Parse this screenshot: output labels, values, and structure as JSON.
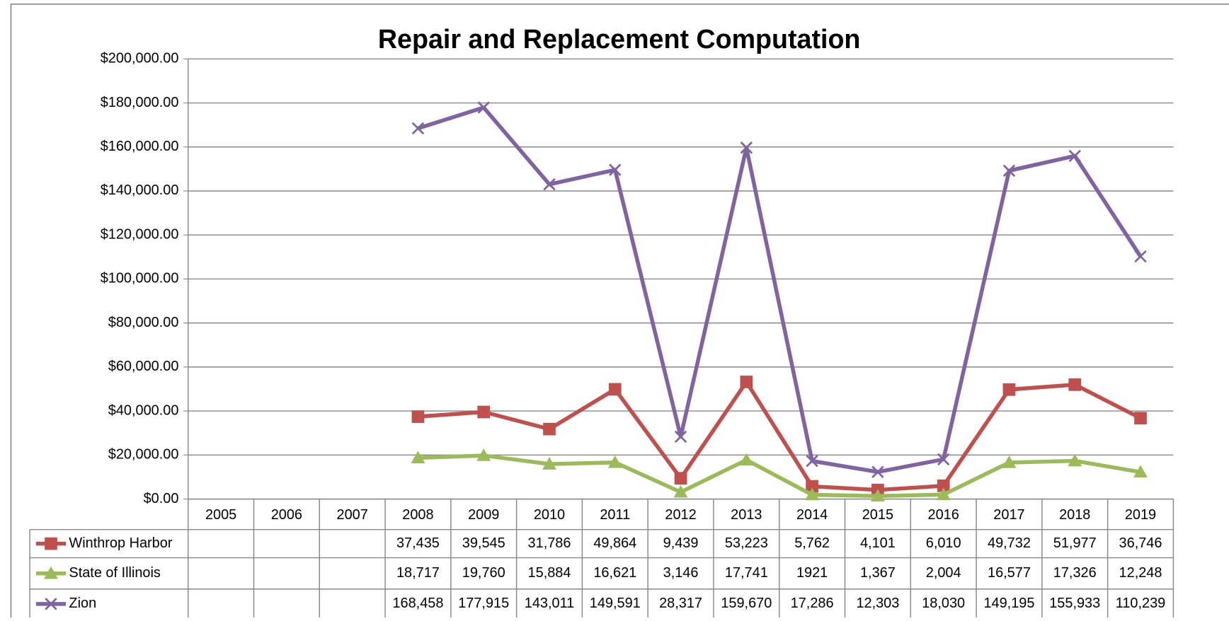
{
  "chart_data": {
    "type": "line",
    "title": "Repair and Replacement Computation",
    "categories": [
      "2005",
      "2006",
      "2007",
      "2008",
      "2009",
      "2010",
      "2011",
      "2012",
      "2013",
      "2014",
      "2015",
      "2016",
      "2017",
      "2018",
      "2019"
    ],
    "series": [
      {
        "name": "Winthrop Harbor",
        "color": "#c0504d",
        "marker": "square",
        "values": [
          null,
          null,
          null,
          37435,
          39545,
          31786,
          49864,
          9439,
          53223,
          5762,
          4101,
          6010,
          49732,
          51977,
          36746
        ],
        "value_labels": [
          null,
          null,
          null,
          "37,435",
          "39,545",
          "31,786",
          "49,864",
          "9,439",
          "53,223",
          "5,762",
          "4,101",
          "6,010",
          "49,732",
          "51,977",
          "36,746"
        ]
      },
      {
        "name": "State of Illinois",
        "color": "#9bbb59",
        "marker": "triangle",
        "values": [
          null,
          null,
          null,
          18717,
          19760,
          15884,
          16621,
          3146,
          17741,
          1921,
          1367,
          2004,
          16577,
          17326,
          12248
        ],
        "value_labels": [
          null,
          null,
          null,
          "18,717",
          "19,760",
          "15,884",
          "16,621",
          "3,146",
          "17,741",
          "1921",
          "1,367",
          "2,004",
          "16,577",
          "17,326",
          "12,248"
        ]
      },
      {
        "name": "Zion",
        "color": "#8064a2",
        "marker": "x",
        "values": [
          null,
          null,
          null,
          168458,
          177915,
          143011,
          149591,
          28317,
          159670,
          17286,
          12303,
          18030,
          149195,
          155933,
          110239
        ],
        "value_labels": [
          null,
          null,
          null,
          "168,458",
          "177,915",
          "143,011",
          "149,591",
          "28,317",
          "159,670",
          "17,286",
          "12,303",
          "18,030",
          "149,195",
          "155,933",
          "110,239"
        ]
      }
    ],
    "ylim": [
      0,
      200000
    ],
    "yticks": [
      {
        "value": 0,
        "label": "$0.00"
      },
      {
        "value": 20000,
        "label": "$20,000.00"
      },
      {
        "value": 40000,
        "label": "$40,000.00"
      },
      {
        "value": 60000,
        "label": "$60,000.00"
      },
      {
        "value": 80000,
        "label": "$80,000.00"
      },
      {
        "value": 100000,
        "label": "$100,000.00"
      },
      {
        "value": 120000,
        "label": "$120,000.00"
      },
      {
        "value": 140000,
        "label": "$140,000.00"
      },
      {
        "value": 160000,
        "label": "$160,000.00"
      },
      {
        "value": 180000,
        "label": "$180,000.00"
      },
      {
        "value": 200000,
        "label": "$200,000.00"
      }
    ],
    "grid": true
  }
}
